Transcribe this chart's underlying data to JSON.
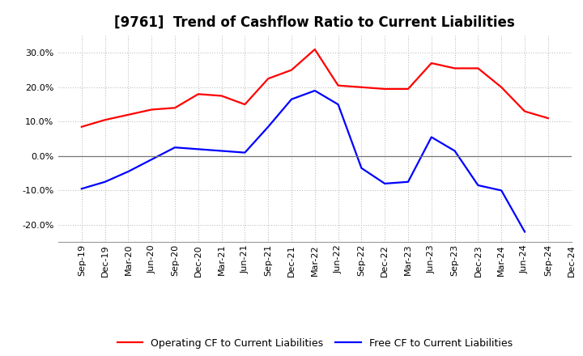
{
  "title": "[9761]  Trend of Cashflow Ratio to Current Liabilities",
  "x_labels": [
    "Sep-19",
    "Dec-19",
    "Mar-20",
    "Jun-20",
    "Sep-20",
    "Dec-20",
    "Mar-21",
    "Jun-21",
    "Sep-21",
    "Dec-21",
    "Mar-22",
    "Jun-22",
    "Sep-22",
    "Dec-22",
    "Mar-23",
    "Jun-23",
    "Sep-23",
    "Dec-23",
    "Mar-24",
    "Jun-24",
    "Sep-24",
    "Dec-24"
  ],
  "operating_cf": [
    8.5,
    10.5,
    12.0,
    13.5,
    14.0,
    18.0,
    17.5,
    15.0,
    22.5,
    25.0,
    31.0,
    20.5,
    20.0,
    19.5,
    19.5,
    27.0,
    25.5,
    25.5,
    20.0,
    13.0,
    11.0,
    null
  ],
  "free_cf": [
    -9.5,
    -7.5,
    -4.5,
    -1.0,
    2.5,
    2.0,
    1.5,
    1.0,
    8.5,
    16.5,
    19.0,
    15.0,
    -3.5,
    -8.0,
    -7.5,
    5.5,
    1.5,
    -8.5,
    -10.0,
    -22.0,
    null,
    null
  ],
  "ylim": [
    -25,
    35
  ],
  "yticks": [
    -20,
    -10,
    0,
    10,
    20,
    30
  ],
  "operating_color": "#ff0000",
  "free_color": "#0000ff",
  "background_color": "#ffffff",
  "grid_color": "#b0b0b0",
  "legend_op": "Operating CF to Current Liabilities",
  "legend_free": "Free CF to Current Liabilities",
  "title_fontsize": 12,
  "tick_fontsize": 8,
  "legend_fontsize": 9,
  "linewidth": 1.6
}
